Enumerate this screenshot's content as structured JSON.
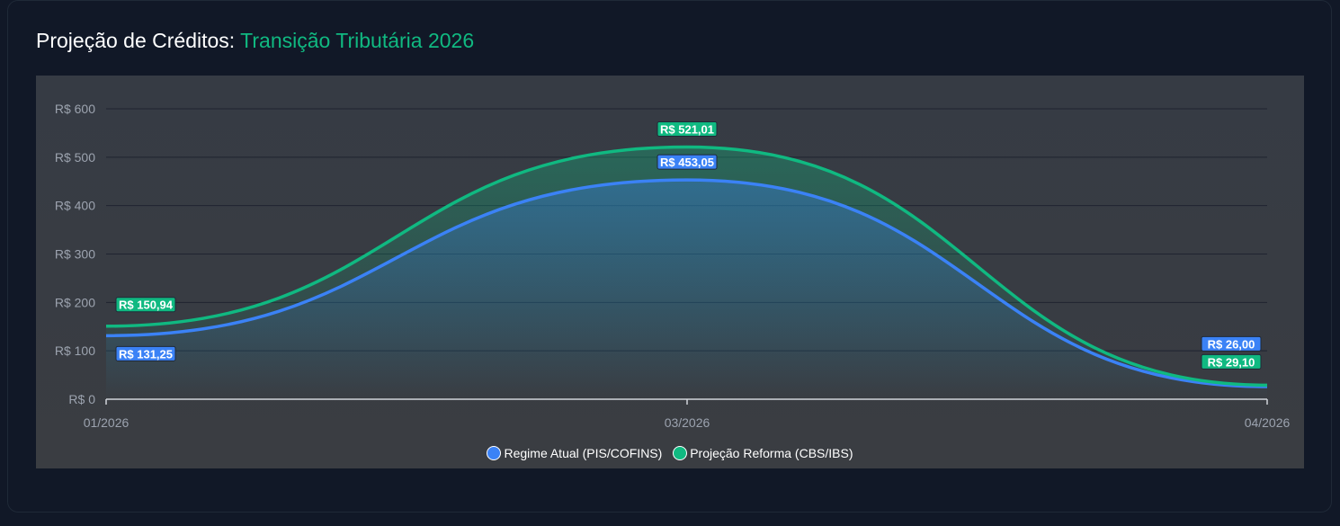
{
  "title": {
    "prefix": "Projeção de Créditos:",
    "accent": "Transição Tributária 2026"
  },
  "colors": {
    "blue": "#3b82f6",
    "green": "#10b981"
  },
  "chart_data": {
    "type": "area",
    "categories": [
      "01/2026",
      "03/2026",
      "04/2026"
    ],
    "yticks": [
      "R$ 0",
      "R$ 100",
      "R$ 200",
      "R$ 300",
      "R$ 400",
      "R$ 500",
      "R$ 600"
    ],
    "ylim": [
      0,
      600
    ],
    "legend_position": "bottom",
    "series": [
      {
        "name": "Regime Atual (PIS/COFINS)",
        "values": [
          131.25,
          453.05,
          26.0
        ],
        "labels": [
          "R$ 131,25",
          "R$ 453,05",
          "R$ 26,00"
        ]
      },
      {
        "name": "Projeção Reforma (CBS/IBS)",
        "values": [
          150.94,
          521.01,
          29.1
        ],
        "labels": [
          "R$ 150,94",
          "R$ 521,01",
          "R$ 29,10"
        ]
      }
    ]
  }
}
